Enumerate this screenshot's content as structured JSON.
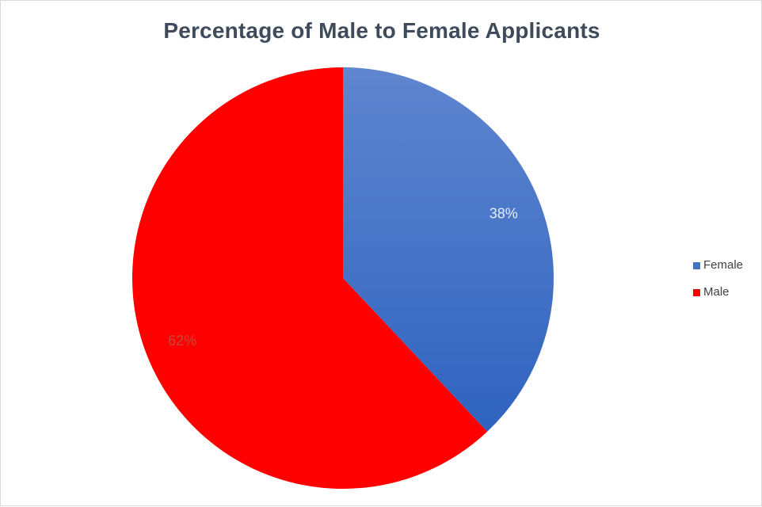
{
  "chart_data": {
    "type": "pie",
    "title": "Percentage of Male to Female Applicants",
    "categories": [
      "Female",
      "Male"
    ],
    "values": [
      38,
      62
    ],
    "labels": [
      "38%",
      "62%"
    ],
    "colors": [
      "#4472c4",
      "#ff0000"
    ],
    "label_colors": [
      "#e8eef8",
      "#c9463d"
    ],
    "legend_position": "right"
  }
}
